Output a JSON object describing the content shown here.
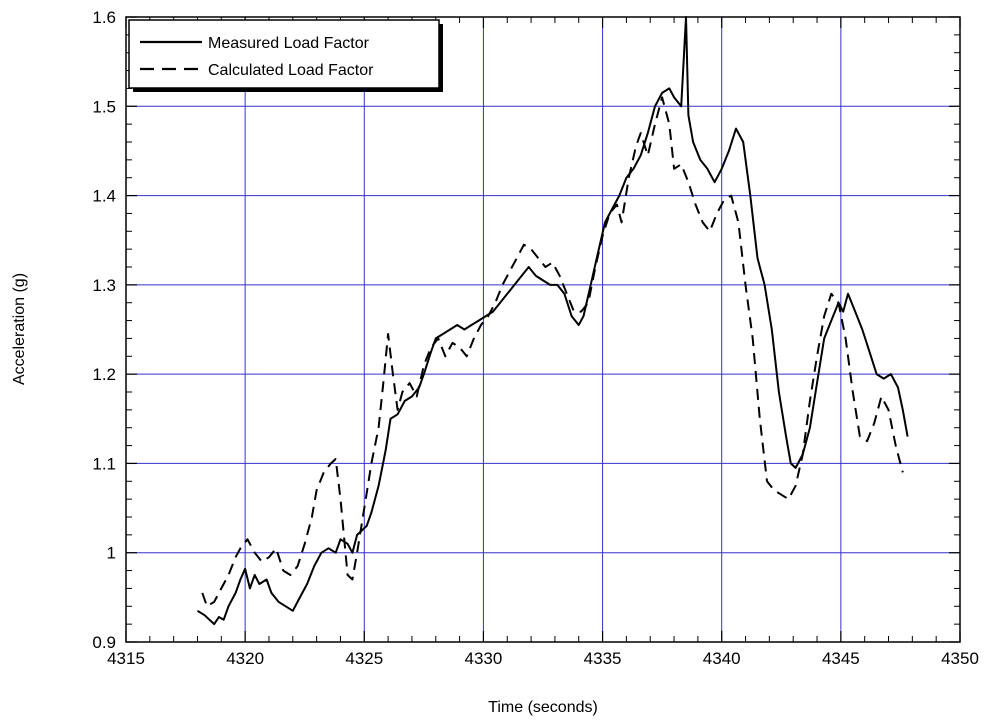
{
  "chart_data": {
    "type": "line",
    "title": "",
    "xlabel": "Time (seconds)",
    "ylabel": "Acceleration (g)",
    "xlim": [
      4315,
      4350
    ],
    "ylim": [
      0.9,
      1.6
    ],
    "x_ticks": [
      "4315",
      "4320",
      "4325",
      "4330",
      "4335",
      "4340",
      "4345",
      "4350"
    ],
    "y_ticks": [
      "0.9",
      "1",
      "1.1",
      "1.2",
      "1.3",
      "1.4",
      "1.5",
      "1.6"
    ],
    "grid": true,
    "grid_color": "#3333cc",
    "legend_position": "top-left",
    "series": [
      {
        "name": "Measured Load Factor",
        "style": "solid",
        "color": "#000000",
        "points": [
          [
            4318.0,
            0.935
          ],
          [
            4318.3,
            0.93
          ],
          [
            4318.5,
            0.925
          ],
          [
            4318.7,
            0.92
          ],
          [
            4318.9,
            0.928
          ],
          [
            4319.1,
            0.925
          ],
          [
            4319.3,
            0.94
          ],
          [
            4319.6,
            0.955
          ],
          [
            4319.8,
            0.97
          ],
          [
            4320.0,
            0.982
          ],
          [
            4320.2,
            0.96
          ],
          [
            4320.4,
            0.975
          ],
          [
            4320.6,
            0.965
          ],
          [
            4320.9,
            0.97
          ],
          [
            4321.1,
            0.955
          ],
          [
            4321.4,
            0.945
          ],
          [
            4321.7,
            0.94
          ],
          [
            4322.0,
            0.935
          ],
          [
            4322.3,
            0.95
          ],
          [
            4322.6,
            0.965
          ],
          [
            4322.9,
            0.985
          ],
          [
            4323.2,
            1.0
          ],
          [
            4323.5,
            1.005
          ],
          [
            4323.8,
            1.0
          ],
          [
            4324.0,
            1.015
          ],
          [
            4324.3,
            1.01
          ],
          [
            4324.5,
            1.0
          ],
          [
            4324.7,
            1.02
          ],
          [
            4324.9,
            1.025
          ],
          [
            4325.1,
            1.03
          ],
          [
            4325.3,
            1.045
          ],
          [
            4325.6,
            1.075
          ],
          [
            4325.9,
            1.115
          ],
          [
            4326.1,
            1.15
          ],
          [
            4326.4,
            1.155
          ],
          [
            4326.7,
            1.17
          ],
          [
            4327.0,
            1.175
          ],
          [
            4327.3,
            1.185
          ],
          [
            4327.5,
            1.2
          ],
          [
            4327.8,
            1.225
          ],
          [
            4328.0,
            1.24
          ],
          [
            4328.3,
            1.245
          ],
          [
            4328.6,
            1.25
          ],
          [
            4328.9,
            1.255
          ],
          [
            4329.2,
            1.25
          ],
          [
            4329.5,
            1.255
          ],
          [
            4329.8,
            1.26
          ],
          [
            4330.1,
            1.265
          ],
          [
            4330.4,
            1.27
          ],
          [
            4330.7,
            1.28
          ],
          [
            4331.0,
            1.29
          ],
          [
            4331.3,
            1.3
          ],
          [
            4331.6,
            1.31
          ],
          [
            4331.9,
            1.32
          ],
          [
            4332.2,
            1.31
          ],
          [
            4332.5,
            1.305
          ],
          [
            4332.8,
            1.3
          ],
          [
            4333.1,
            1.3
          ],
          [
            4333.4,
            1.29
          ],
          [
            4333.7,
            1.265
          ],
          [
            4334.0,
            1.255
          ],
          [
            4334.2,
            1.265
          ],
          [
            4334.5,
            1.3
          ],
          [
            4334.8,
            1.335
          ],
          [
            4335.1,
            1.37
          ],
          [
            4335.4,
            1.385
          ],
          [
            4335.7,
            1.4
          ],
          [
            4336.0,
            1.42
          ],
          [
            4336.3,
            1.43
          ],
          [
            4336.6,
            1.445
          ],
          [
            4336.9,
            1.47
          ],
          [
            4337.2,
            1.5
          ],
          [
            4337.5,
            1.515
          ],
          [
            4337.8,
            1.52
          ],
          [
            4338.0,
            1.51
          ],
          [
            4338.3,
            1.5
          ],
          [
            4338.5,
            1.6
          ],
          [
            4338.6,
            1.49
          ],
          [
            4338.8,
            1.46
          ],
          [
            4339.1,
            1.44
          ],
          [
            4339.4,
            1.43
          ],
          [
            4339.7,
            1.415
          ],
          [
            4340.0,
            1.43
          ],
          [
            4340.3,
            1.45
          ],
          [
            4340.6,
            1.475
          ],
          [
            4340.9,
            1.46
          ],
          [
            4341.2,
            1.4
          ],
          [
            4341.5,
            1.33
          ],
          [
            4341.8,
            1.3
          ],
          [
            4342.1,
            1.25
          ],
          [
            4342.4,
            1.18
          ],
          [
            4342.7,
            1.13
          ],
          [
            4342.9,
            1.1
          ],
          [
            4343.1,
            1.095
          ],
          [
            4343.4,
            1.11
          ],
          [
            4343.7,
            1.14
          ],
          [
            4344.0,
            1.19
          ],
          [
            4344.3,
            1.24
          ],
          [
            4344.6,
            1.26
          ],
          [
            4344.9,
            1.28
          ],
          [
            4345.1,
            1.27
          ],
          [
            4345.3,
            1.29
          ],
          [
            4345.6,
            1.27
          ],
          [
            4345.9,
            1.25
          ],
          [
            4346.2,
            1.225
          ],
          [
            4346.5,
            1.2
          ],
          [
            4346.8,
            1.195
          ],
          [
            4347.1,
            1.2
          ],
          [
            4347.4,
            1.185
          ],
          [
            4347.6,
            1.16
          ],
          [
            4347.8,
            1.13
          ]
        ]
      },
      {
        "name": "Calculated Load Factor",
        "style": "dashed",
        "color": "#000000",
        "points": [
          [
            4318.2,
            0.955
          ],
          [
            4318.4,
            0.94
          ],
          [
            4318.7,
            0.945
          ],
          [
            4319.0,
            0.96
          ],
          [
            4319.3,
            0.975
          ],
          [
            4319.6,
            0.995
          ],
          [
            4319.8,
            1.005
          ],
          [
            4320.1,
            1.015
          ],
          [
            4320.4,
            1.0
          ],
          [
            4320.7,
            0.99
          ],
          [
            4321.0,
            0.995
          ],
          [
            4321.3,
            1.005
          ],
          [
            4321.6,
            0.98
          ],
          [
            4321.9,
            0.975
          ],
          [
            4322.2,
            0.985
          ],
          [
            4322.5,
            1.01
          ],
          [
            4322.8,
            1.04
          ],
          [
            4323.0,
            1.07
          ],
          [
            4323.3,
            1.09
          ],
          [
            4323.6,
            1.1
          ],
          [
            4323.8,
            1.105
          ],
          [
            4324.0,
            1.06
          ],
          [
            4324.3,
            0.975
          ],
          [
            4324.5,
            0.97
          ],
          [
            4324.7,
            1.0
          ],
          [
            4325.0,
            1.05
          ],
          [
            4325.3,
            1.1
          ],
          [
            4325.6,
            1.14
          ],
          [
            4325.8,
            1.19
          ],
          [
            4326.0,
            1.245
          ],
          [
            4326.2,
            1.2
          ],
          [
            4326.4,
            1.16
          ],
          [
            4326.6,
            1.18
          ],
          [
            4326.9,
            1.19
          ],
          [
            4327.2,
            1.175
          ],
          [
            4327.5,
            1.21
          ],
          [
            4327.8,
            1.23
          ],
          [
            4328.1,
            1.24
          ],
          [
            4328.4,
            1.22
          ],
          [
            4328.7,
            1.235
          ],
          [
            4329.0,
            1.23
          ],
          [
            4329.3,
            1.22
          ],
          [
            4329.6,
            1.24
          ],
          [
            4329.9,
            1.255
          ],
          [
            4330.2,
            1.265
          ],
          [
            4330.5,
            1.28
          ],
          [
            4330.8,
            1.3
          ],
          [
            4331.1,
            1.315
          ],
          [
            4331.4,
            1.33
          ],
          [
            4331.7,
            1.345
          ],
          [
            4332.0,
            1.34
          ],
          [
            4332.3,
            1.33
          ],
          [
            4332.6,
            1.32
          ],
          [
            4332.9,
            1.325
          ],
          [
            4333.2,
            1.31
          ],
          [
            4333.5,
            1.29
          ],
          [
            4333.8,
            1.27
          ],
          [
            4334.1,
            1.27
          ],
          [
            4334.4,
            1.28
          ],
          [
            4334.7,
            1.32
          ],
          [
            4335.0,
            1.355
          ],
          [
            4335.3,
            1.38
          ],
          [
            4335.6,
            1.39
          ],
          [
            4335.8,
            1.37
          ],
          [
            4336.1,
            1.42
          ],
          [
            4336.4,
            1.455
          ],
          [
            4336.6,
            1.47
          ],
          [
            4336.9,
            1.445
          ],
          [
            4337.2,
            1.48
          ],
          [
            4337.5,
            1.51
          ],
          [
            4337.8,
            1.48
          ],
          [
            4338.0,
            1.43
          ],
          [
            4338.3,
            1.435
          ],
          [
            4338.6,
            1.415
          ],
          [
            4338.9,
            1.39
          ],
          [
            4339.2,
            1.37
          ],
          [
            4339.5,
            1.36
          ],
          [
            4339.8,
            1.38
          ],
          [
            4340.1,
            1.395
          ],
          [
            4340.4,
            1.4
          ],
          [
            4340.7,
            1.37
          ],
          [
            4341.0,
            1.3
          ],
          [
            4341.3,
            1.24
          ],
          [
            4341.6,
            1.15
          ],
          [
            4341.9,
            1.08
          ],
          [
            4342.2,
            1.07
          ],
          [
            4342.5,
            1.065
          ],
          [
            4342.8,
            1.06
          ],
          [
            4343.1,
            1.075
          ],
          [
            4343.4,
            1.11
          ],
          [
            4343.7,
            1.17
          ],
          [
            4344.0,
            1.22
          ],
          [
            4344.3,
            1.265
          ],
          [
            4344.6,
            1.29
          ],
          [
            4344.9,
            1.28
          ],
          [
            4345.2,
            1.24
          ],
          [
            4345.5,
            1.18
          ],
          [
            4345.8,
            1.13
          ],
          [
            4346.1,
            1.125
          ],
          [
            4346.4,
            1.145
          ],
          [
            4346.7,
            1.175
          ],
          [
            4347.0,
            1.16
          ],
          [
            4347.3,
            1.12
          ],
          [
            4347.6,
            1.09
          ]
        ]
      }
    ]
  }
}
